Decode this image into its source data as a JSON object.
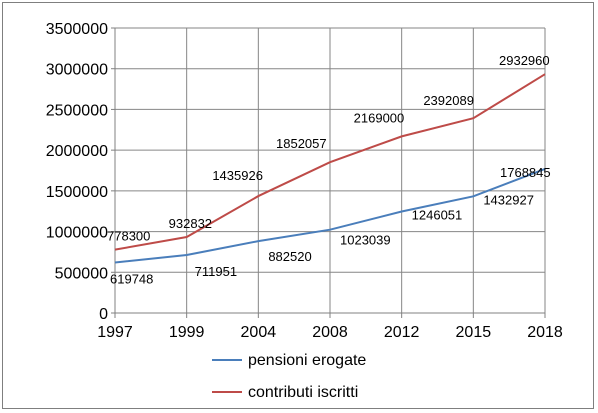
{
  "chart_data": {
    "type": "line",
    "categories": [
      "1997",
      "1999",
      "2004",
      "2008",
      "2012",
      "2015",
      "2018"
    ],
    "series": [
      {
        "name": "pensioni erogate",
        "color": "#4a7ebb",
        "values": [
          619748,
          711951,
          882520,
          1023039,
          1246051,
          1432927,
          1768845
        ],
        "labels": [
          "619748",
          "711951",
          "882520",
          "1023039",
          "1246051",
          "1432927",
          "1768845"
        ]
      },
      {
        "name": "contributi iscritti",
        "color": "#be4b48",
        "values": [
          778300,
          932832,
          1435926,
          1852057,
          2169000,
          2392089,
          2932960
        ],
        "labels": [
          "778300",
          "932832",
          "1435926",
          "1852057",
          "2169000",
          "2392089",
          "2932960"
        ]
      }
    ],
    "yticks": [
      "0",
      "500000",
      "1000000",
      "1500000",
      "2000000",
      "2500000",
      "3000000",
      "3500000"
    ],
    "ylim": [
      0,
      3500000
    ],
    "grid": true,
    "legend": "bottom",
    "title": "",
    "xlabel": "",
    "ylabel": ""
  }
}
